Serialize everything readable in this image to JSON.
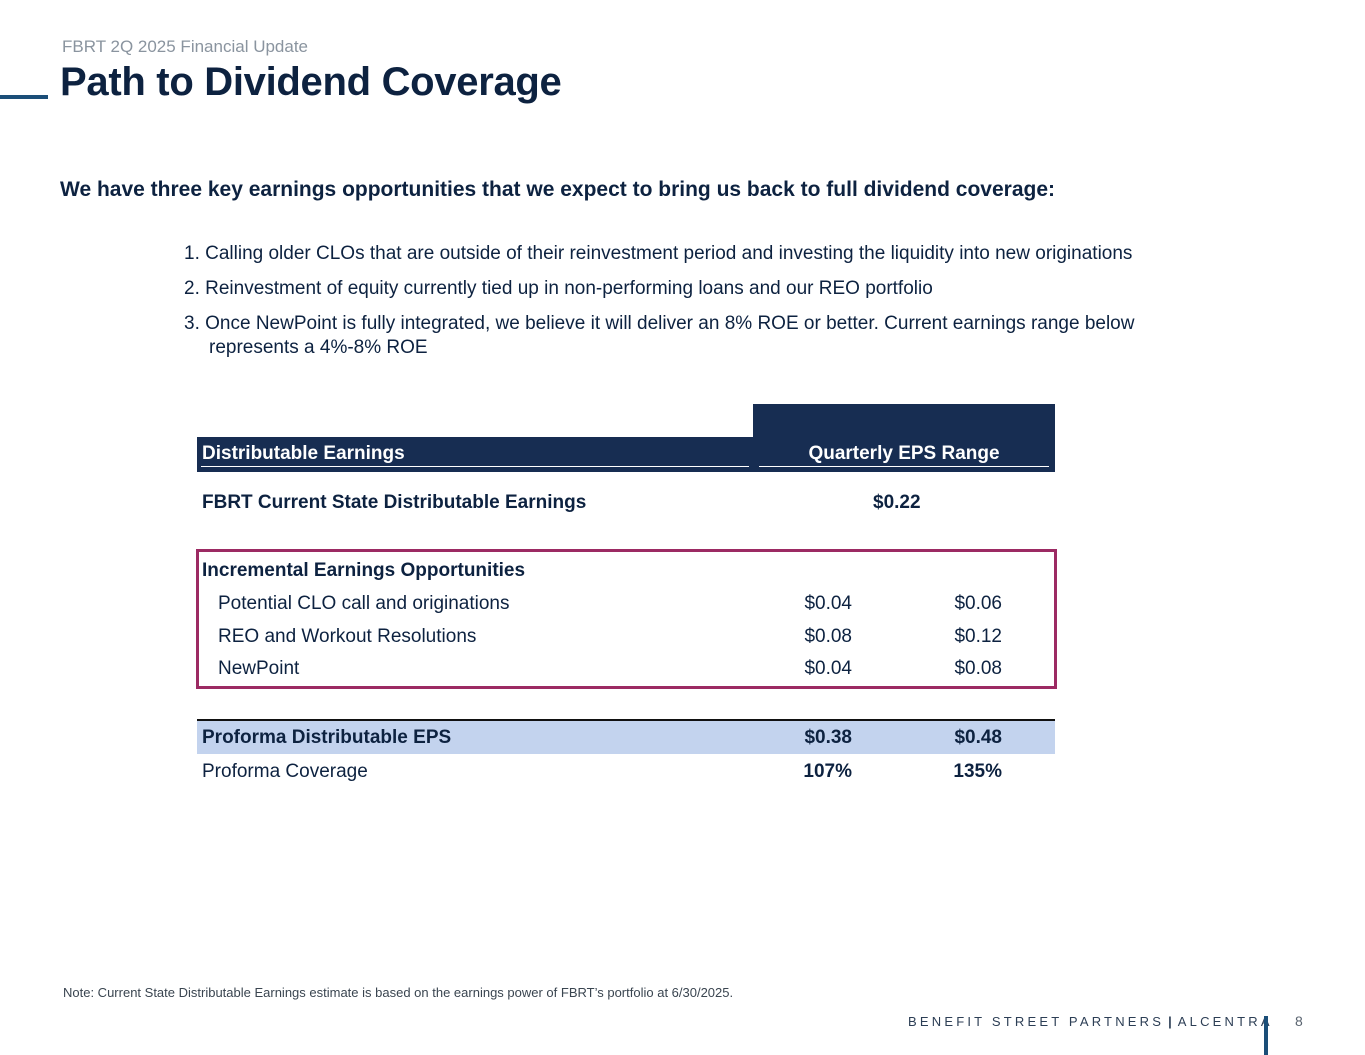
{
  "header": {
    "supertitle": "FBRT 2Q 2025 Financial Update",
    "title": "Path to Dividend Coverage"
  },
  "intro": "We have three key earnings opportunities that we expect to bring us back to full dividend coverage:",
  "points": [
    {
      "line1": "1. Calling older CLOs that are outside of their reinvestment period and investing the liquidity into new originations",
      "line2": ""
    },
    {
      "line1": "2. Reinvestment of equity currently tied up in non-performing loans and our REO portfolio",
      "line2": ""
    },
    {
      "line1": "3. Once NewPoint is fully integrated, we believe it will deliver an 8% ROE or better. Current earnings range below",
      "line2": "represents a 4%-8% ROE"
    }
  ],
  "table": {
    "col_left": "Distributable Earnings",
    "col_right": "Quarterly EPS Range",
    "current": {
      "label": "FBRT Current State Distributable Earnings",
      "value": "$0.22"
    },
    "incremental": {
      "heading": "Incremental Earnings Opportunities",
      "rows": [
        {
          "label": "Potential CLO call and originations",
          "low": "$0.04",
          "high": "$0.06"
        },
        {
          "label": "REO and Workout Resolutions",
          "low": "$0.08",
          "high": "$0.12"
        },
        {
          "label": "NewPoint",
          "low": "$0.04",
          "high": "$0.08"
        }
      ]
    },
    "proforma": {
      "label": "Proforma Distributable EPS",
      "low": "$0.38",
      "high": "$0.48"
    },
    "coverage": {
      "label": "Proforma Coverage",
      "low": "107%",
      "high": "135%"
    }
  },
  "footer": {
    "note": "Note: Current State Distributable Earnings estimate is based on the earnings power of FBRT’s portfolio at 6/30/2025.",
    "brand_left": "BENEFIT STREET PARTNERS",
    "brand_right": "ALCENTRA",
    "page": "8"
  },
  "colors": {
    "navy": "#172d52",
    "title": "#0d2240",
    "highlight_box": "#9c2a63",
    "proforma_fill": "#c3d3ee"
  }
}
